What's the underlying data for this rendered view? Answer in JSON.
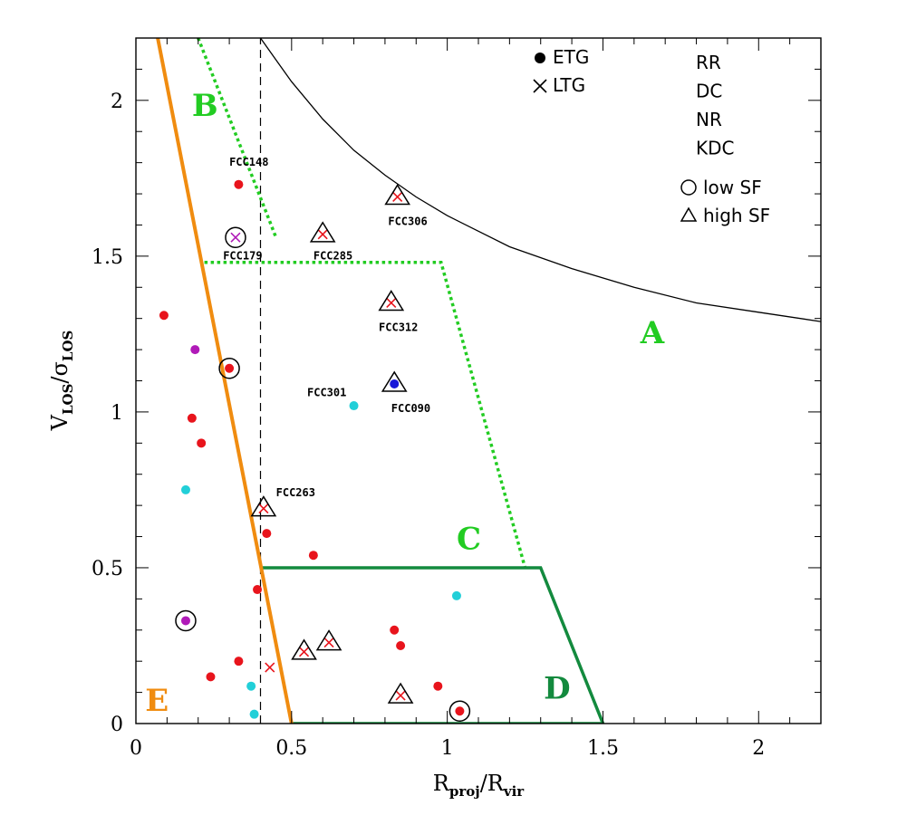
{
  "chart_data": {
    "type": "scatter",
    "xlabel_main": "R",
    "xlabel_sub1": "proj",
    "xlabel_sep": "/R",
    "xlabel_sub2": "vir",
    "ylabel_main1": "V",
    "ylabel_sub1": "LOS",
    "ylabel_sep": "/σ",
    "ylabel_sub2": "LOS",
    "xlim": [
      0,
      2.2
    ],
    "ylim": [
      0,
      2.2
    ],
    "xticks": [
      {
        "v": 0,
        "label": "0"
      },
      {
        "v": 0.5,
        "label": "0.5"
      },
      {
        "v": 1,
        "label": "1"
      },
      {
        "v": 1.5,
        "label": "1.5"
      },
      {
        "v": 2,
        "label": "2"
      }
    ],
    "yticks": [
      {
        "v": 0,
        "label": "0"
      },
      {
        "v": 0.5,
        "label": "0.5"
      },
      {
        "v": 1,
        "label": "1"
      },
      {
        "v": 1.5,
        "label": "1.5"
      },
      {
        "v": 2,
        "label": "2"
      }
    ],
    "colors": {
      "RR": "#e8141c",
      "DC": "#22cfd8",
      "NR": "#1818d8",
      "KDC": "#b01ab8",
      "region_green": "#22cc22",
      "region_dark_green": "#138a3e",
      "region_orange": "#f08c10"
    },
    "legend": {
      "shapes": [
        {
          "symbol": "dot",
          "label": "ETG"
        },
        {
          "symbol": "cross",
          "label": "LTG"
        }
      ],
      "kinematics": [
        {
          "label": "RR",
          "key": "RR"
        },
        {
          "label": "DC",
          "key": "DC"
        },
        {
          "label": "NR",
          "key": "NR"
        },
        {
          "label": "KDC",
          "key": "KDC"
        }
      ],
      "sf": [
        {
          "symbol": "circle",
          "label": "low SF"
        },
        {
          "symbol": "triangle",
          "label": "high SF"
        }
      ]
    },
    "regions": [
      {
        "label": "A",
        "x": 1.62,
        "y": 1.22,
        "color": "region_green"
      },
      {
        "label": "B",
        "x": 0.18,
        "y": 1.95,
        "color": "region_green"
      },
      {
        "label": "C",
        "x": 1.03,
        "y": 0.56,
        "color": "region_green"
      },
      {
        "label": "D",
        "x": 1.31,
        "y": 0.08,
        "color": "region_dark_green"
      },
      {
        "label": "E",
        "x": 0.03,
        "y": 0.04,
        "color": "region_orange"
      }
    ],
    "lines": [
      {
        "name": "escape-velocity-curve",
        "style": "solid",
        "color": "#000000",
        "width": 1.3,
        "points": [
          [
            0.4,
            2.2
          ],
          [
            0.45,
            2.13
          ],
          [
            0.5,
            2.06
          ],
          [
            0.6,
            1.94
          ],
          [
            0.7,
            1.84
          ],
          [
            0.8,
            1.76
          ],
          [
            0.9,
            1.69
          ],
          [
            1.0,
            1.63
          ],
          [
            1.1,
            1.58
          ],
          [
            1.2,
            1.53
          ],
          [
            1.4,
            1.46
          ],
          [
            1.6,
            1.4
          ],
          [
            1.8,
            1.35
          ],
          [
            2.0,
            1.32
          ],
          [
            2.2,
            1.29
          ]
        ]
      },
      {
        "name": "vertical-dashed-line",
        "style": "dashed",
        "color": "#000000",
        "width": 1.2,
        "points": [
          [
            0.4,
            0
          ],
          [
            0.4,
            2.2
          ]
        ]
      },
      {
        "name": "region-b-boundary",
        "style": "dotted",
        "color": "#22cc22",
        "width": 3.5,
        "points": [
          [
            0.2,
            2.2
          ],
          [
            0.45,
            1.56
          ]
        ]
      },
      {
        "name": "region-c-boundary",
        "style": "dotted",
        "color": "#22cc22",
        "width": 3.5,
        "points": [
          [
            0.22,
            1.48
          ],
          [
            0.98,
            1.48
          ],
          [
            1.25,
            0.5
          ]
        ]
      },
      {
        "name": "region-d-boundary",
        "style": "solid",
        "color": "#138a3e",
        "width": 3.5,
        "points": [
          [
            0.4,
            0.5
          ],
          [
            1.3,
            0.5
          ],
          [
            1.5,
            0
          ],
          [
            0.5,
            0
          ]
        ]
      },
      {
        "name": "region-e-boundary",
        "style": "solid",
        "color": "#f08c10",
        "width": 4,
        "points": [
          [
            0.07,
            2.2
          ],
          [
            0.5,
            0
          ]
        ]
      }
    ],
    "points": [
      {
        "x": 0.33,
        "y": 1.73,
        "marker": "dot",
        "kin": "RR"
      },
      {
        "x": 0.32,
        "y": 1.56,
        "marker": "cross",
        "kin": "KDC",
        "sf": "low"
      },
      {
        "x": 0.84,
        "y": 1.69,
        "marker": "cross",
        "kin": "RR",
        "sf": "high"
      },
      {
        "x": 0.6,
        "y": 1.57,
        "marker": "cross",
        "kin": "RR",
        "sf": "high"
      },
      {
        "x": 0.82,
        "y": 1.35,
        "marker": "cross",
        "kin": "RR",
        "sf": "high"
      },
      {
        "x": 0.83,
        "y": 1.09,
        "marker": "dot",
        "kin": "NR",
        "sf": "high"
      },
      {
        "x": 0.7,
        "y": 1.02,
        "marker": "dot",
        "kin": "DC"
      },
      {
        "x": 0.09,
        "y": 1.31,
        "marker": "dot",
        "kin": "RR"
      },
      {
        "x": 0.19,
        "y": 1.2,
        "marker": "dot",
        "kin": "KDC"
      },
      {
        "x": 0.3,
        "y": 1.14,
        "marker": "dot",
        "kin": "RR",
        "sf": "low"
      },
      {
        "x": 0.18,
        "y": 0.98,
        "marker": "dot",
        "kin": "RR"
      },
      {
        "x": 0.21,
        "y": 0.9,
        "marker": "dot",
        "kin": "RR"
      },
      {
        "x": 0.16,
        "y": 0.75,
        "marker": "dot",
        "kin": "DC"
      },
      {
        "x": 0.41,
        "y": 0.69,
        "marker": "cross",
        "kin": "RR",
        "sf": "high"
      },
      {
        "x": 0.42,
        "y": 0.61,
        "marker": "dot",
        "kin": "RR"
      },
      {
        "x": 0.57,
        "y": 0.54,
        "marker": "dot",
        "kin": "RR"
      },
      {
        "x": 0.39,
        "y": 0.43,
        "marker": "dot",
        "kin": "RR"
      },
      {
        "x": 0.16,
        "y": 0.33,
        "marker": "dot",
        "kin": "KDC",
        "sf": "low"
      },
      {
        "x": 0.33,
        "y": 0.2,
        "marker": "dot",
        "kin": "RR"
      },
      {
        "x": 0.24,
        "y": 0.15,
        "marker": "dot",
        "kin": "RR"
      },
      {
        "x": 0.37,
        "y": 0.12,
        "marker": "dot",
        "kin": "DC"
      },
      {
        "x": 0.43,
        "y": 0.18,
        "marker": "cross",
        "kin": "RR"
      },
      {
        "x": 0.38,
        "y": 0.03,
        "marker": "dot",
        "kin": "DC"
      },
      {
        "x": 0.54,
        "y": 0.23,
        "marker": "cross",
        "kin": "RR",
        "sf": "high"
      },
      {
        "x": 0.62,
        "y": 0.26,
        "marker": "cross",
        "kin": "RR",
        "sf": "high"
      },
      {
        "x": 0.83,
        "y": 0.3,
        "marker": "dot",
        "kin": "RR"
      },
      {
        "x": 0.85,
        "y": 0.25,
        "marker": "dot",
        "kin": "RR"
      },
      {
        "x": 0.85,
        "y": 0.09,
        "marker": "cross",
        "kin": "RR",
        "sf": "high"
      },
      {
        "x": 0.97,
        "y": 0.12,
        "marker": "dot",
        "kin": "RR"
      },
      {
        "x": 1.03,
        "y": 0.41,
        "marker": "dot",
        "kin": "DC"
      },
      {
        "x": 1.04,
        "y": 0.04,
        "marker": "dot",
        "kin": "RR",
        "sf": "low"
      }
    ],
    "annotations": [
      {
        "text": "FCC148",
        "x": 0.3,
        "y": 1.79
      },
      {
        "text": "FCC179",
        "x": 0.28,
        "y": 1.49
      },
      {
        "text": "FCC306",
        "x": 0.81,
        "y": 1.6
      },
      {
        "text": "FCC285",
        "x": 0.57,
        "y": 1.49
      },
      {
        "text": "FCC312",
        "x": 0.78,
        "y": 1.26
      },
      {
        "text": "FCC301",
        "x": 0.55,
        "y": 1.05
      },
      {
        "text": "FCC090",
        "x": 0.82,
        "y": 1.0
      },
      {
        "text": "FCC263",
        "x": 0.45,
        "y": 0.73
      }
    ]
  }
}
